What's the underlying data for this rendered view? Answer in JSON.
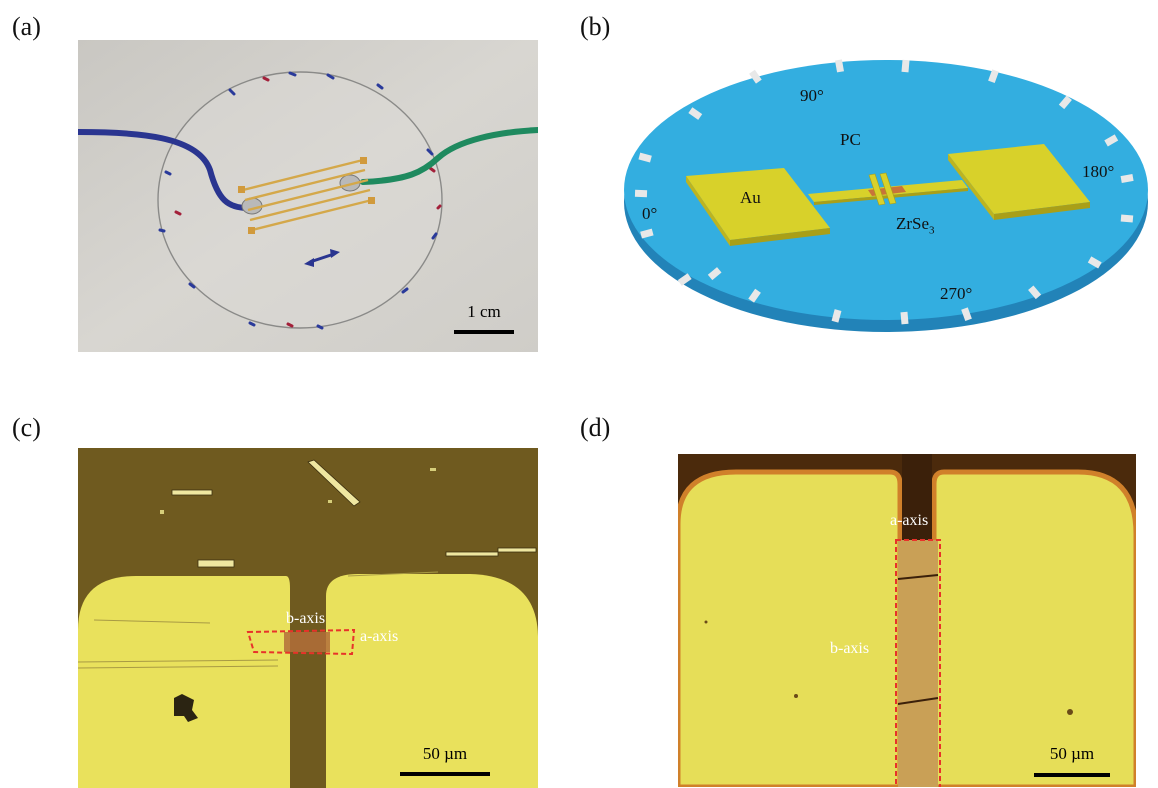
{
  "figure": {
    "panels": [
      {
        "id": "a",
        "label": "(a)",
        "scale_bar": "1 cm"
      },
      {
        "id": "b",
        "label": "(b)",
        "angles": {
          "a0": "0°",
          "a90": "90°",
          "a180": "180°",
          "a270": "270°"
        },
        "substrate": "PC",
        "electrode": "Au",
        "crystal": {
          "base": "ZrSe",
          "subscript": "3"
        }
      },
      {
        "id": "c",
        "label": "(c)",
        "axis_b": "b-axis",
        "axis_a": "a-axis",
        "scale_bar": "50 µm"
      },
      {
        "id": "d",
        "label": "(d)",
        "axis_a": "a-axis",
        "axis_b": "b-axis",
        "scale_bar": "50 µm"
      }
    ]
  },
  "colors": {
    "disk_blue": "#2fa8dc",
    "gold_pad": "#d8d12a",
    "micro_yellow": "#e8e25a",
    "micro_brown": "#6e5a1e",
    "dash_red": "#e8322a"
  }
}
